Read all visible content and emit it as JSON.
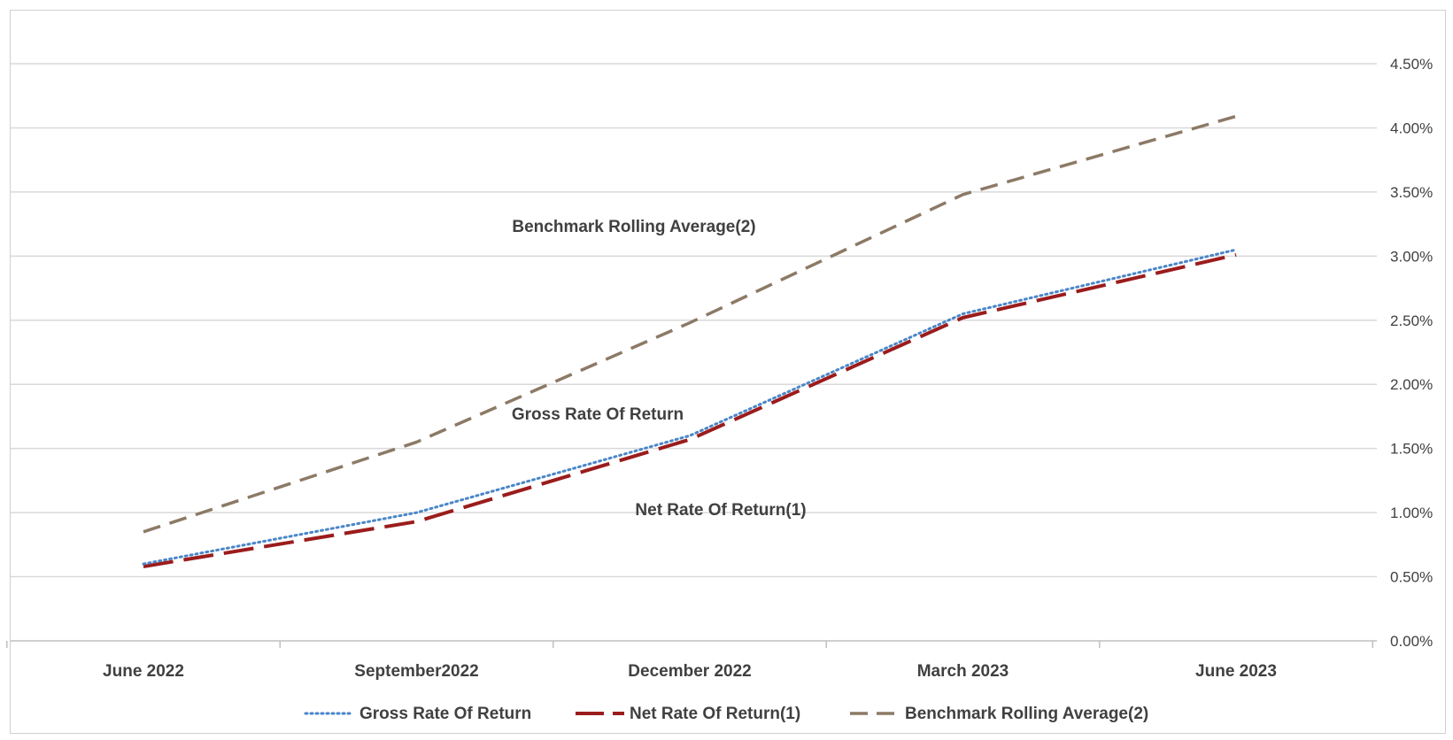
{
  "chart_data": {
    "type": "line",
    "categories": [
      "June 2022",
      "September2022",
      "December 2022",
      "March 2023",
      "June 2023"
    ],
    "series": [
      {
        "name": "Gross Rate Of Return",
        "values": [
          0.6,
          1.0,
          1.6,
          2.55,
          3.05
        ],
        "color": "#4a86c8",
        "dash": "dotted"
      },
      {
        "name": "Net Rate Of Return(1)",
        "values": [
          0.58,
          0.93,
          1.57,
          2.52,
          3.01
        ],
        "color": "#9b1c1c",
        "dash": "long-dash"
      },
      {
        "name": "Benchmark Rolling Average(2)",
        "values": [
          0.85,
          1.55,
          2.48,
          3.48,
          4.09
        ],
        "color": "#8c7a66",
        "dash": "dash"
      }
    ],
    "yticks": [
      "0.00%",
      "0.50%",
      "1.00%",
      "1.50%",
      "2.00%",
      "2.50%",
      "3.00%",
      "3.50%",
      "4.00%",
      "4.50%"
    ],
    "ylim": [
      0,
      4.5
    ],
    "y_axis_side": "right",
    "grid": true,
    "legend_position": "bottom",
    "annotations": [
      "Benchmark Rolling Average(2)",
      "Gross Rate Of Return",
      "Net Rate Of Return(1)"
    ]
  }
}
